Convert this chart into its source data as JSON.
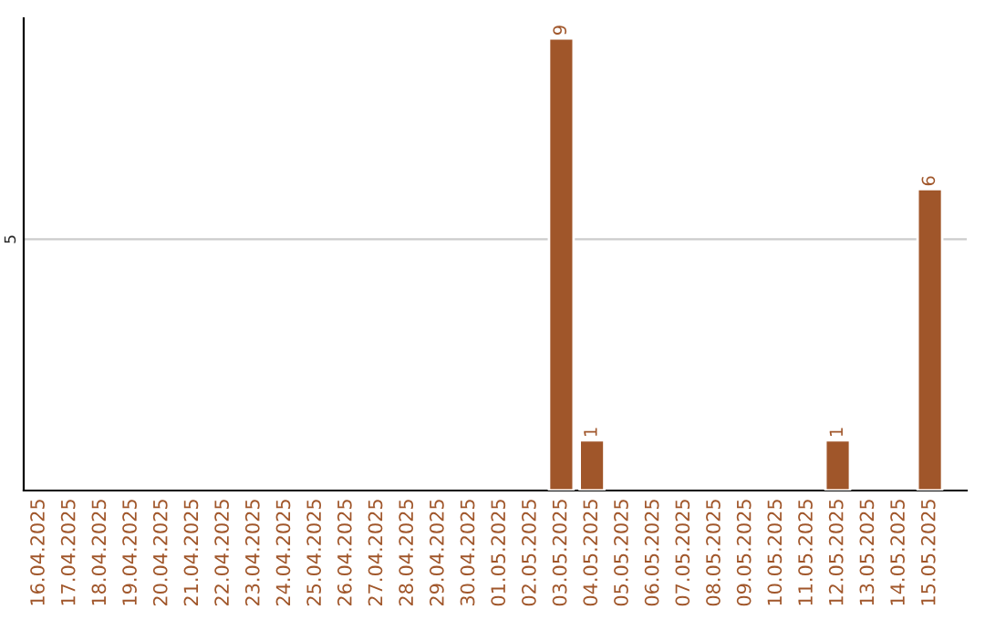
{
  "chart_data": {
    "type": "bar",
    "categories": [
      "16.04.2025",
      "17.04.2025",
      "18.04.2025",
      "19.04.2025",
      "20.04.2025",
      "21.04.2025",
      "22.04.2025",
      "23.04.2025",
      "24.04.2025",
      "25.04.2025",
      "26.04.2025",
      "27.04.2025",
      "28.04.2025",
      "29.04.2025",
      "30.04.2025",
      "01.05.2025",
      "02.05.2025",
      "03.05.2025",
      "04.05.2025",
      "05.05.2025",
      "06.05.2025",
      "07.05.2025",
      "08.05.2025",
      "09.05.2025",
      "10.05.2025",
      "11.05.2025",
      "12.05.2025",
      "13.05.2025",
      "14.05.2025",
      "15.05.2025"
    ],
    "values": [
      null,
      null,
      null,
      null,
      null,
      null,
      null,
      null,
      null,
      null,
      null,
      null,
      null,
      null,
      null,
      null,
      null,
      9,
      1,
      null,
      null,
      null,
      null,
      null,
      null,
      null,
      1,
      null,
      null,
      6
    ],
    "value_labels": [
      null,
      null,
      null,
      null,
      null,
      null,
      null,
      null,
      null,
      null,
      null,
      null,
      null,
      null,
      null,
      null,
      null,
      "9",
      "1",
      null,
      null,
      null,
      null,
      null,
      null,
      null,
      "1",
      null,
      null,
      "6"
    ],
    "color": "#a0562a",
    "ylim": [
      0,
      9.4
    ],
    "ref_lines": [
      {
        "axis": "y",
        "value": 5,
        "label": "5",
        "color": "#cccccc"
      }
    ],
    "legend": false
  }
}
